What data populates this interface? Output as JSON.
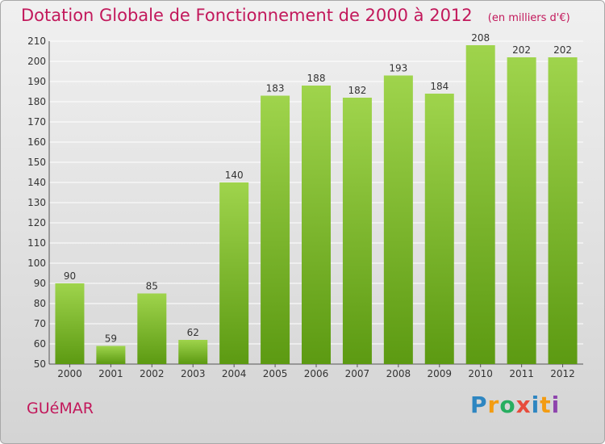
{
  "title": "Dotation Globale de Fonctionnement de 2000 à 2012",
  "subtitle": "(en milliers d'€)",
  "place": "GUéMAR",
  "brand": {
    "letters": [
      "P",
      "r",
      "o",
      "x",
      "i",
      "t",
      "i"
    ],
    "colors": [
      "#2e86c1",
      "#f39c12",
      "#27ae60",
      "#e74c3c",
      "#2e86c1",
      "#f39c12",
      "#8e44ad"
    ]
  },
  "colors": {
    "bar_top": "#9fd44c",
    "bar_bottom": "#5c9a12",
    "grid": "#ffffff",
    "axis_text": "#333333",
    "title": "#c2185b"
  },
  "chart_data": {
    "type": "bar",
    "categories": [
      "2000",
      "2001",
      "2002",
      "2003",
      "2004",
      "2005",
      "2006",
      "2007",
      "2008",
      "2009",
      "2010",
      "2011",
      "2012"
    ],
    "values": [
      90,
      59,
      85,
      62,
      140,
      183,
      188,
      182,
      193,
      184,
      208,
      202,
      202
    ],
    "title": "Dotation Globale de Fonctionnement de 2000 à 2012",
    "subtitle": "(en milliers d'€)",
    "ylim": [
      50,
      210
    ],
    "yticks": [
      50,
      60,
      70,
      80,
      90,
      100,
      110,
      120,
      130,
      140,
      150,
      160,
      170,
      180,
      190,
      200,
      210
    ],
    "grid": true,
    "legend": "none"
  }
}
